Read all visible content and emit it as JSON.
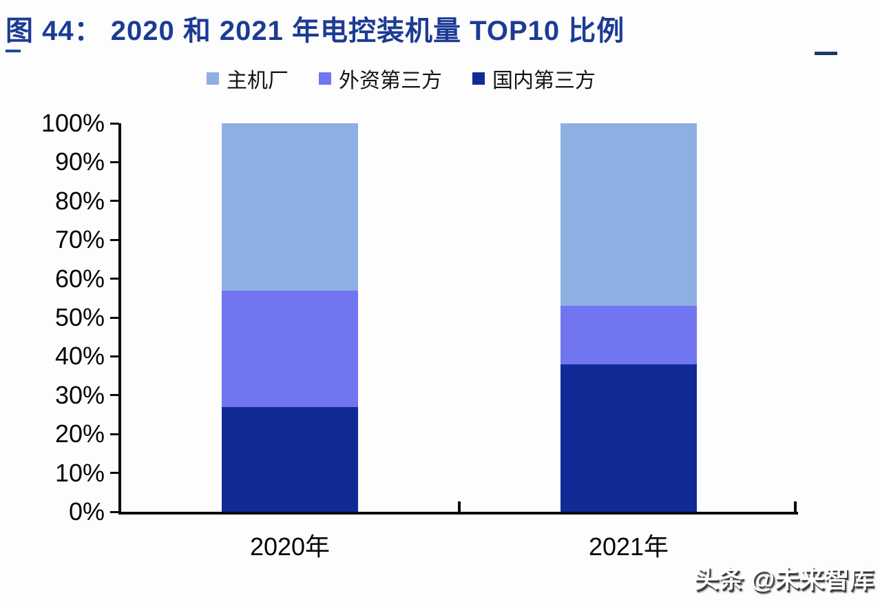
{
  "figure": {
    "title": "图 44： 2020 和 2021 年电控装机量 TOP10 比例"
  },
  "legend": {
    "items": [
      {
        "label": "主机厂",
        "color": "#8db0e3"
      },
      {
        "label": "外资第三方",
        "color": "#7175f0"
      },
      {
        "label": "国内第三方",
        "color": "#112b96"
      }
    ]
  },
  "chart_data": {
    "type": "bar",
    "subtype": "stacked-percentage",
    "title": "2020 和 2021 年电控装机量 TOP10 比例",
    "categories": [
      "2020年",
      "2021年"
    ],
    "series": [
      {
        "name": "国内第三方",
        "color": "#112b96",
        "values": [
          27,
          38
        ]
      },
      {
        "name": "外资第三方",
        "color": "#7175f0",
        "values": [
          30,
          15
        ]
      },
      {
        "name": "主机厂",
        "color": "#8db0e3",
        "values": [
          43,
          47
        ]
      }
    ],
    "stack_order": "bottom-to-top",
    "ylim": [
      0,
      100
    ],
    "ytick_step": 10,
    "ytick_format": "{v}%",
    "grid": false,
    "legend_position": "top"
  },
  "watermark": {
    "text": "头条 @未来智库"
  },
  "colors": {
    "title": "#1c3b94",
    "axis": "#0a0a0a"
  }
}
